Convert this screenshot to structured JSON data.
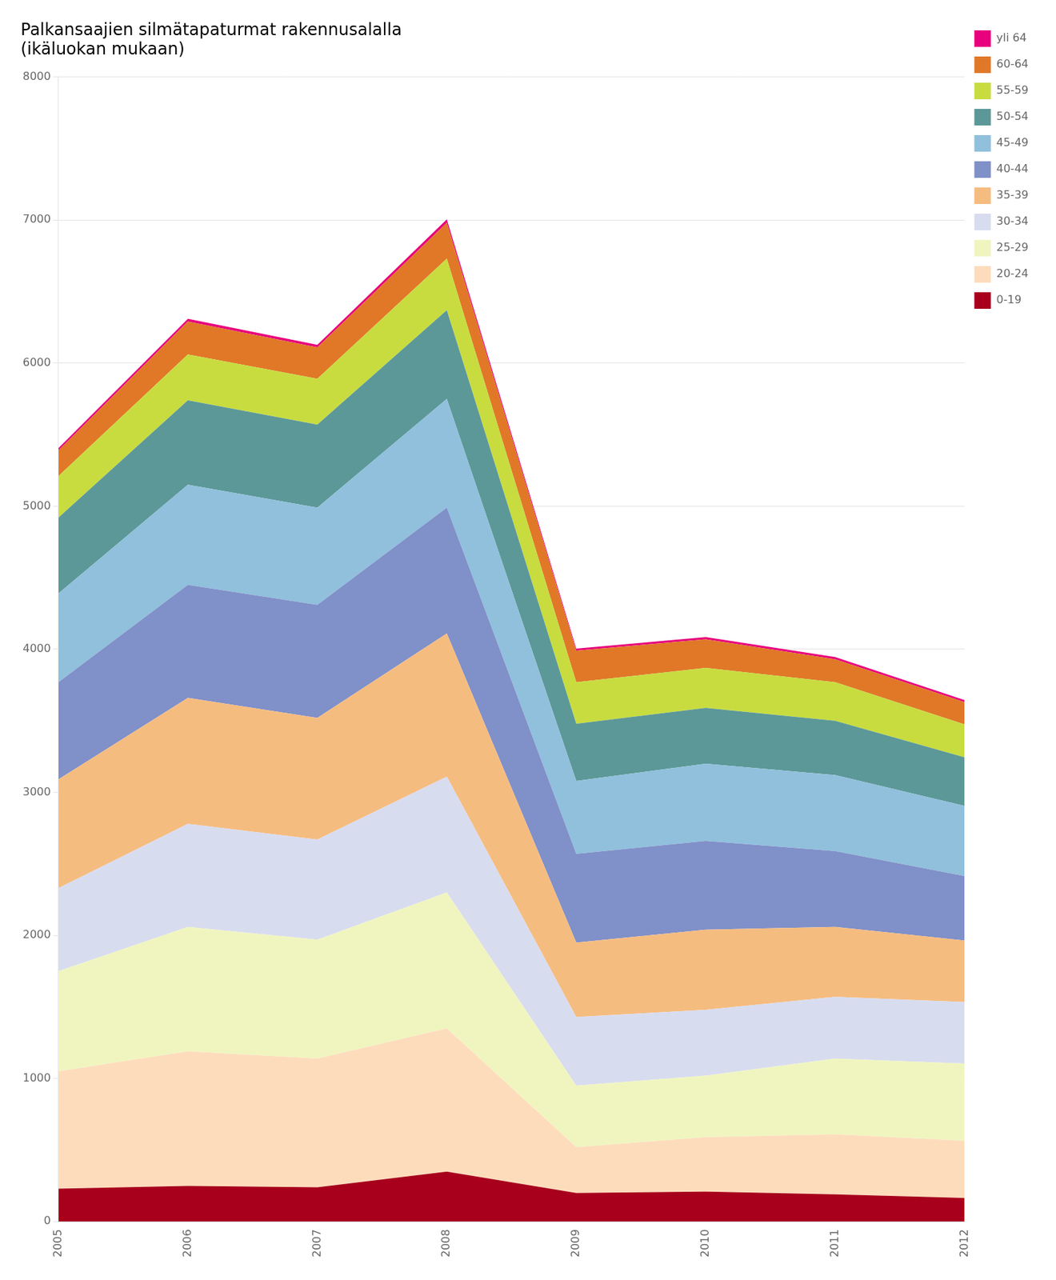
{
  "chart_data": {
    "type": "area",
    "title": "Palkansaajien silmätapaturmat rakennusalalla\n(ikäluokan mukaan)",
    "x": [
      2005,
      2006,
      2007,
      2008,
      2009,
      2010,
      2011,
      2012
    ],
    "series": [
      {
        "name": "0-19",
        "color": "#A8001C",
        "values": [
          230,
          250,
          240,
          350,
          200,
          210,
          190,
          165
        ]
      },
      {
        "name": "20-24",
        "color": "#FDDCBC",
        "values": [
          820,
          940,
          900,
          1000,
          320,
          380,
          420,
          400
        ]
      },
      {
        "name": "25-29",
        "color": "#F0F5C0",
        "values": [
          700,
          870,
          830,
          950,
          430,
          430,
          530,
          540
        ]
      },
      {
        "name": "30-34",
        "color": "#D8DCEF",
        "values": [
          580,
          720,
          700,
          810,
          480,
          460,
          430,
          430
        ]
      },
      {
        "name": "35-39",
        "color": "#F5BC80",
        "values": [
          760,
          880,
          850,
          1000,
          520,
          560,
          490,
          430
        ]
      },
      {
        "name": "40-44",
        "color": "#8090C8",
        "values": [
          680,
          790,
          790,
          880,
          620,
          620,
          530,
          450
        ]
      },
      {
        "name": "45-49",
        "color": "#90C0DC",
        "values": [
          620,
          700,
          680,
          760,
          510,
          540,
          530,
          490
        ]
      },
      {
        "name": "50-54",
        "color": "#5C9898",
        "values": [
          530,
          590,
          580,
          620,
          400,
          390,
          380,
          340
        ]
      },
      {
        "name": "55-59",
        "color": "#C8DC40",
        "values": [
          290,
          320,
          320,
          360,
          290,
          280,
          270,
          230
        ]
      },
      {
        "name": "60-64",
        "color": "#E07828",
        "values": [
          180,
          230,
          220,
          250,
          220,
          200,
          160,
          155
        ]
      },
      {
        "name": "yli 64",
        "color": "#E8007C",
        "values": [
          15,
          20,
          18,
          25,
          15,
          15,
          15,
          15
        ]
      }
    ],
    "xlim": [
      2005,
      2012
    ],
    "xticks": [
      2005,
      2006,
      2007,
      2008,
      2009,
      2010,
      2011,
      2012
    ],
    "ylim": [
      0,
      8000
    ],
    "yticks": [
      0,
      1000,
      2000,
      3000,
      4000,
      5000,
      6000,
      7000,
      8000
    ],
    "stacked": true,
    "grid": true,
    "legend": "right"
  }
}
